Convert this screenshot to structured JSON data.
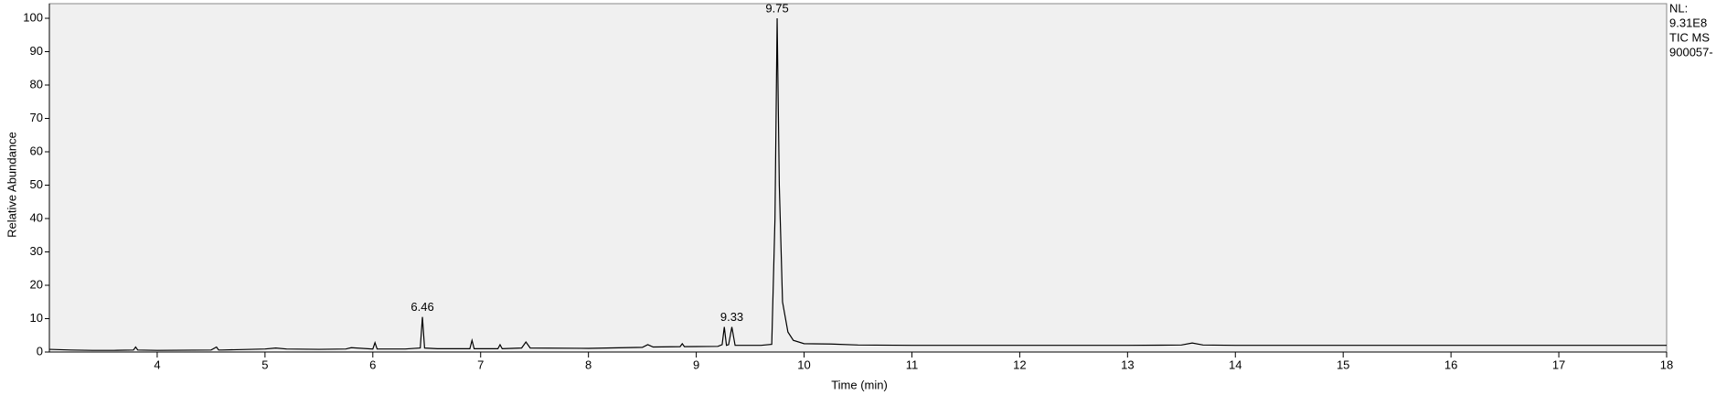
{
  "chart_data": {
    "type": "line",
    "x_label": "Time (min)",
    "y_label": "Relative Abundance",
    "side_text": [
      "NL:",
      "9.31E8",
      "TIC  MS",
      "900057-"
    ],
    "xlim": [
      3.0,
      18.0
    ],
    "xticks": [
      4,
      5,
      6,
      7,
      8,
      9,
      10,
      11,
      12,
      13,
      14,
      15,
      16,
      17,
      18
    ],
    "ylim": [
      0,
      100
    ],
    "yticks": [
      0,
      10,
      20,
      30,
      40,
      50,
      60,
      70,
      80,
      90,
      100
    ],
    "grid": false,
    "series": [
      {
        "color": "#000000",
        "x": [
          3.0,
          3.2,
          3.4,
          3.6,
          3.78,
          3.8,
          3.82,
          4.0,
          4.5,
          4.55,
          4.57,
          4.6,
          5.0,
          5.1,
          5.2,
          5.5,
          5.75,
          5.8,
          6.0,
          6.02,
          6.04,
          6.3,
          6.44,
          6.46,
          6.48,
          6.6,
          6.9,
          6.92,
          6.94,
          7.16,
          7.18,
          7.2,
          7.38,
          7.42,
          7.46,
          8.0,
          8.5,
          8.55,
          8.6,
          8.85,
          8.87,
          8.89,
          9.2,
          9.24,
          9.26,
          9.28,
          9.3,
          9.33,
          9.36,
          9.6,
          9.7,
          9.73,
          9.75,
          9.77,
          9.8,
          9.85,
          9.9,
          10.0,
          10.25,
          10.5,
          11,
          12,
          13,
          13.5,
          13.6,
          13.7,
          14,
          15,
          16,
          17,
          18
        ],
        "values": [
          0.8,
          0.6,
          0.5,
          0.5,
          0.6,
          1.5,
          0.6,
          0.5,
          0.6,
          1.5,
          0.6,
          0.6,
          0.9,
          1.2,
          0.9,
          0.8,
          0.9,
          1.3,
          0.9,
          2.8,
          0.9,
          0.9,
          1.2,
          10.5,
          1.2,
          1.0,
          1.0,
          3.5,
          1.0,
          1.0,
          2.2,
          1.0,
          1.2,
          3.0,
          1.2,
          1.1,
          1.4,
          2.2,
          1.5,
          1.6,
          2.5,
          1.6,
          1.7,
          2.2,
          7.5,
          2.0,
          2.2,
          7.5,
          2.0,
          2.0,
          2.3,
          40,
          100,
          50,
          15,
          6,
          3.5,
          2.5,
          2.4,
          2.1,
          2.0,
          2.0,
          2.0,
          2.1,
          2.7,
          2.1,
          2.0,
          2.0,
          2.0,
          2.0,
          2.0
        ]
      }
    ],
    "annotations": [
      {
        "x": 6.46,
        "y": 10.5,
        "label": "6.46"
      },
      {
        "x": 9.33,
        "y": 7.5,
        "label": "9.33"
      },
      {
        "x": 9.75,
        "y": 100,
        "label": "9.75"
      }
    ]
  }
}
